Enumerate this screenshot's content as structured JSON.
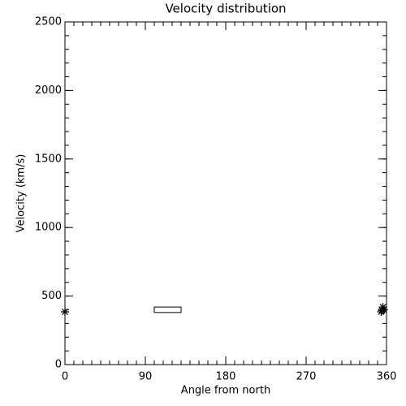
{
  "chart_data": {
    "type": "scatter",
    "title": "Velocity distribution",
    "xlabel": "Angle from north",
    "ylabel": "Velocity (km/s)",
    "x": [
      0,
      354,
      356,
      357,
      355
    ],
    "y": [
      385,
      385,
      420,
      400,
      395
    ],
    "marker": "asterisk",
    "color": "#000000",
    "box": {
      "x": [
        100,
        130
      ],
      "y": [
        380,
        420
      ]
    },
    "xlim": [
      0,
      360
    ],
    "xticks": [
      0,
      90,
      180,
      270,
      360
    ],
    "x_minor_step": 10,
    "ylim": [
      0,
      2500
    ],
    "yticks": [
      0,
      500,
      1000,
      1500,
      2000,
      2500
    ],
    "y_minor_step": 100,
    "grid": false
  }
}
